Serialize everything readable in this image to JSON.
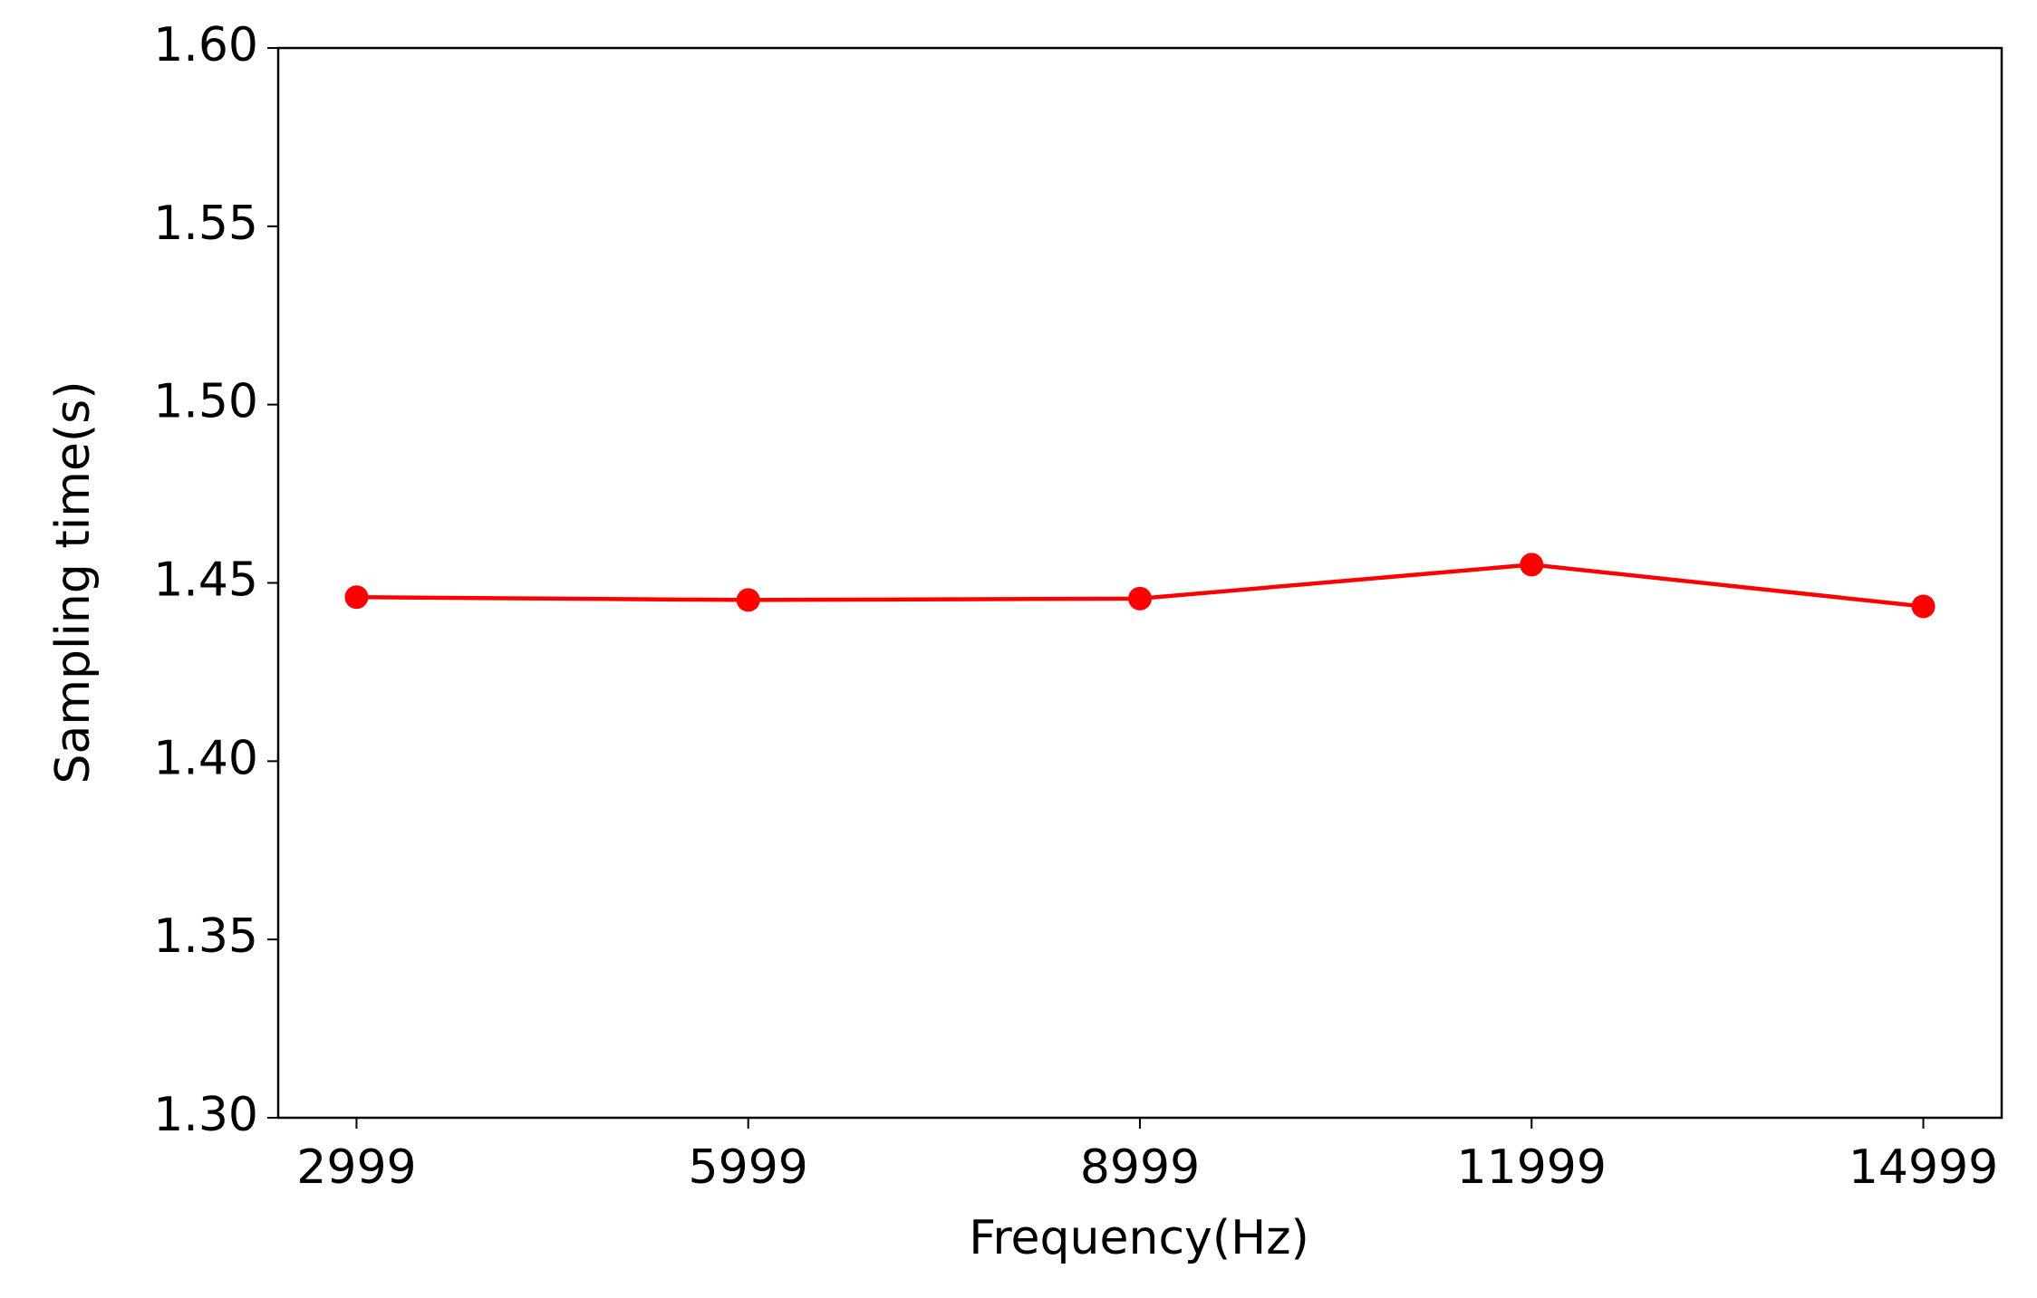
{
  "chart_data": {
    "type": "line",
    "xlabel": "Frequency(Hz)",
    "ylabel": "Sampling time(s)",
    "x": [
      2999,
      5999,
      8999,
      11999,
      14999
    ],
    "series": [
      {
        "color": "#ff0000",
        "values": [
          1.446,
          1.4452,
          1.4456,
          1.4551,
          1.4434
        ]
      }
    ],
    "xlim": [
      2399,
      15599
    ],
    "xticks": [
      2999,
      5999,
      8999,
      11999,
      14999
    ],
    "ylim": [
      1.3,
      1.6
    ],
    "yticks": [
      {
        "value": 1.3,
        "label": "1.30"
      },
      {
        "value": 1.35,
        "label": "1.35"
      },
      {
        "value": 1.4,
        "label": "1.40"
      },
      {
        "value": 1.45,
        "label": "1.45"
      },
      {
        "value": 1.5,
        "label": "1.50"
      },
      {
        "value": 1.55,
        "label": "1.55"
      },
      {
        "value": 1.6,
        "label": "1.60"
      }
    ],
    "grid": false
  }
}
